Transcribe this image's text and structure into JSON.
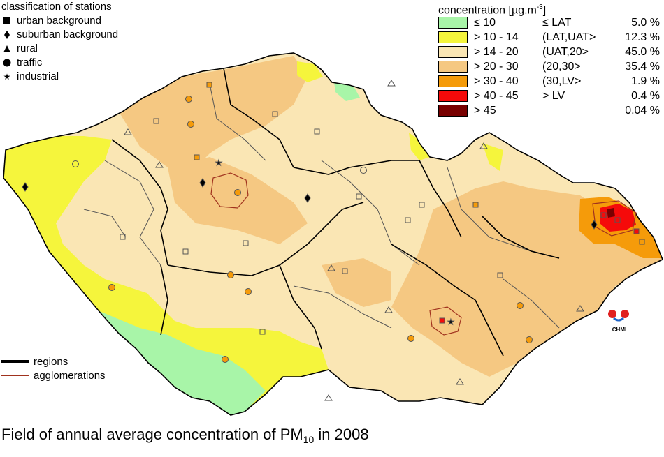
{
  "stations_legend": {
    "title": "classification of stations",
    "items": [
      {
        "label": "urban background",
        "symbol": "square-icon"
      },
      {
        "label": "suburban background",
        "symbol": "diamond-icon"
      },
      {
        "label": "rural",
        "symbol": "triangle-icon"
      },
      {
        "label": "traffic",
        "symbol": "circle-icon"
      },
      {
        "label": "industrial",
        "symbol": "star-icon"
      }
    ]
  },
  "concentration_legend": {
    "title": "concentration [µg.m-3]",
    "title_main": "concentration [µg.m",
    "title_sup": "-3",
    "title_end": "]",
    "classes": [
      {
        "range": "≤ 10",
        "class": "≤ LAT",
        "share": "5.0 %",
        "color": "#a8f5a8"
      },
      {
        "range": "> 10 - 14",
        "class": "(LAT,UAT>",
        "share": "12.3 %",
        "color": "#f5f53c"
      },
      {
        "range": "> 14 - 20",
        "class": "(UAT,20>",
        "share": "45.0 %",
        "color": "#fae6b4"
      },
      {
        "range": "> 20 - 30",
        "class": "(20,30>",
        "share": "35.4 %",
        "color": "#f5c882"
      },
      {
        "range": "> 30 - 40",
        "class": "(30,LV>",
        "share": "1.9 %",
        "color": "#f59b0a"
      },
      {
        "range": "> 40 - 45",
        "class": "> LV",
        "share": "0.4 %",
        "color": "#f50a0a"
      },
      {
        "range": "> 45",
        "class": "",
        "share": "0.04 %",
        "color": "#780000"
      }
    ]
  },
  "lines_legend": {
    "items": [
      {
        "label": "regions",
        "color": "#000000"
      },
      {
        "label": "agglomerations",
        "color": "#a0321e"
      }
    ]
  },
  "caption": {
    "main": "Field of annual average concentration of PM",
    "sub": "10",
    "end": " in 2008"
  },
  "logo": {
    "text": "CHMI"
  },
  "stations": [
    {
      "type": "square"
    },
    {
      "type": "diamond"
    },
    {
      "type": "triangle"
    },
    {
      "type": "circle"
    },
    {
      "type": "star"
    }
  ]
}
